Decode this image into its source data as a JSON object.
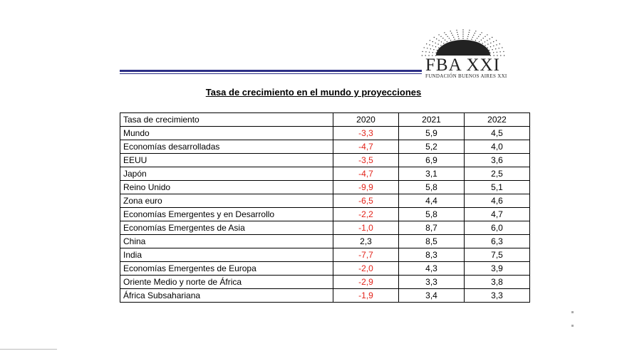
{
  "logo": {
    "name": "FBA XXI",
    "subtitle": "FUNDACIÓN BUENOS AIRES XXI"
  },
  "title": "Tasa de crecimiento en el mundo y proyecciones",
  "table": {
    "headers": [
      "Tasa de crecimiento",
      "2020",
      "2021",
      "2022"
    ],
    "rows": [
      {
        "label": "Mundo",
        "y2020": "-3,3",
        "y2021": "5,9",
        "y2022": "4,5"
      },
      {
        "label": "Economías desarrolladas",
        "y2020": "-4,7",
        "y2021": "5,2",
        "y2022": "4,0"
      },
      {
        "label": "EEUU",
        "y2020": "-3,5",
        "y2021": "6,9",
        "y2022": "3,6"
      },
      {
        "label": "Japón",
        "y2020": "-4,7",
        "y2021": "3,1",
        "y2022": "2,5"
      },
      {
        "label": "Reino Unido",
        "y2020": "-9,9",
        "y2021": "5,8",
        "y2022": "5,1"
      },
      {
        "label": "Zona euro",
        "y2020": "-6,5",
        "y2021": "4,4",
        "y2022": "4,6"
      },
      {
        "label": "Economías Emergentes y en Desarrollo",
        "y2020": "-2,2",
        "y2021": "5,8",
        "y2022": "4,7"
      },
      {
        "label": "Economías Emergentes de Asia",
        "y2020": "-1,0",
        "y2021": "8,7",
        "y2022": "6,0"
      },
      {
        "label": "China",
        "y2020": "2,3",
        "y2021": "8,5",
        "y2022": "6,3"
      },
      {
        "label": "India",
        "y2020": "-7,7",
        "y2021": "8,3",
        "y2022": "7,5"
      },
      {
        "label": "Economías Emergentes de Europa",
        "y2020": "-2,0",
        "y2021": "4,3",
        "y2022": "3,9"
      },
      {
        "label": "Oriente Medio y norte de África",
        "y2020": "-2,9",
        "y2021": "3,3",
        "y2022": "3,8"
      },
      {
        "label": "África Subsahariana",
        "y2020": "-1,9",
        "y2021": "3,4",
        "y2022": "3,3"
      }
    ]
  },
  "colors": {
    "negative": "#e2231a",
    "rule": "#2c2f86"
  }
}
